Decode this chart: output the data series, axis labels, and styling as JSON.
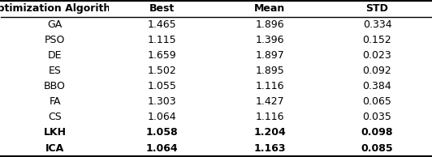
{
  "columns": [
    "Optimization Algorithm",
    "Best",
    "Mean",
    "STD"
  ],
  "rows": [
    [
      "GA",
      "1.465",
      "1.896",
      "0.334"
    ],
    [
      "PSO",
      "1.115",
      "1.396",
      "0.152"
    ],
    [
      "DE",
      "1.659",
      "1.897",
      "0.023"
    ],
    [
      "ES",
      "1.502",
      "1.895",
      "0.092"
    ],
    [
      "BBO",
      "1.055",
      "1.116",
      "0.384"
    ],
    [
      "FA",
      "1.303",
      "1.427",
      "0.065"
    ],
    [
      "CS",
      "1.064",
      "1.116",
      "0.035"
    ],
    [
      "LKH",
      "1.058",
      "1.204",
      "0.098"
    ],
    [
      "ICA",
      "1.064",
      "1.163",
      "0.085"
    ]
  ],
  "bold_rows": [
    "LKH",
    "ICA"
  ],
  "header_fontsize": 9,
  "cell_fontsize": 9,
  "background_color": "#ffffff",
  "figsize": [
    5.32,
    1.94
  ],
  "dpi": 100
}
